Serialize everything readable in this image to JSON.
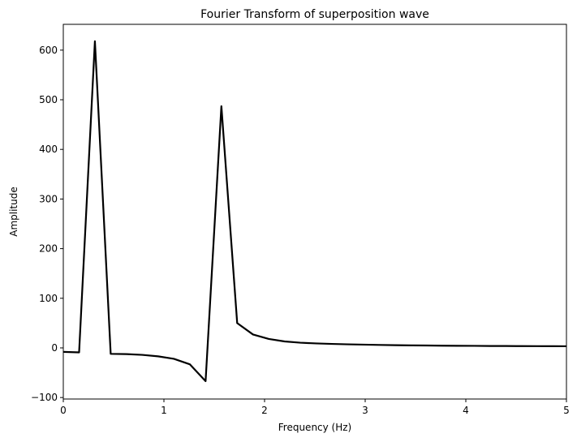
{
  "chart_data": {
    "type": "line",
    "title": "Fourier Transform of superposition wave",
    "xlabel": "Frequency (Hz)",
    "ylabel": "Amplitude",
    "xlim": [
      0,
      5
    ],
    "ylim": [
      -103,
      652
    ],
    "x_ticks": [
      0,
      1,
      2,
      3,
      4,
      5
    ],
    "x_tick_labels": [
      "0",
      "1",
      "2",
      "3",
      "4",
      "5"
    ],
    "y_ticks": [
      -100,
      0,
      100,
      200,
      300,
      400,
      500,
      600
    ],
    "y_tick_labels": [
      "−100",
      "0",
      "100",
      "200",
      "300",
      "400",
      "500",
      "600"
    ],
    "grid": false,
    "series": [
      {
        "color": "#000000",
        "x": [
          0,
          0.157,
          0.314,
          0.471,
          0.628,
          0.785,
          0.942,
          1.099,
          1.257,
          1.414,
          1.571,
          1.728,
          1.885,
          2.042,
          2.199,
          2.356,
          2.513,
          2.67,
          2.827,
          2.985,
          3.142,
          3.299,
          3.456,
          3.613,
          3.77,
          3.927,
          4.084,
          4.241,
          4.398,
          4.555,
          4.712,
          4.869,
          5.0
        ],
        "y": [
          -8,
          -9,
          618,
          -12,
          -12.5,
          -14,
          -17,
          -22,
          -33,
          -67,
          487,
          50,
          27,
          18,
          13,
          10.5,
          9,
          8,
          7.2,
          6.6,
          6,
          5.5,
          5.1,
          4.8,
          4.5,
          4.3,
          4.1,
          3.9,
          3.8,
          3.6,
          3.5,
          3.4,
          3.3
        ]
      }
    ]
  }
}
